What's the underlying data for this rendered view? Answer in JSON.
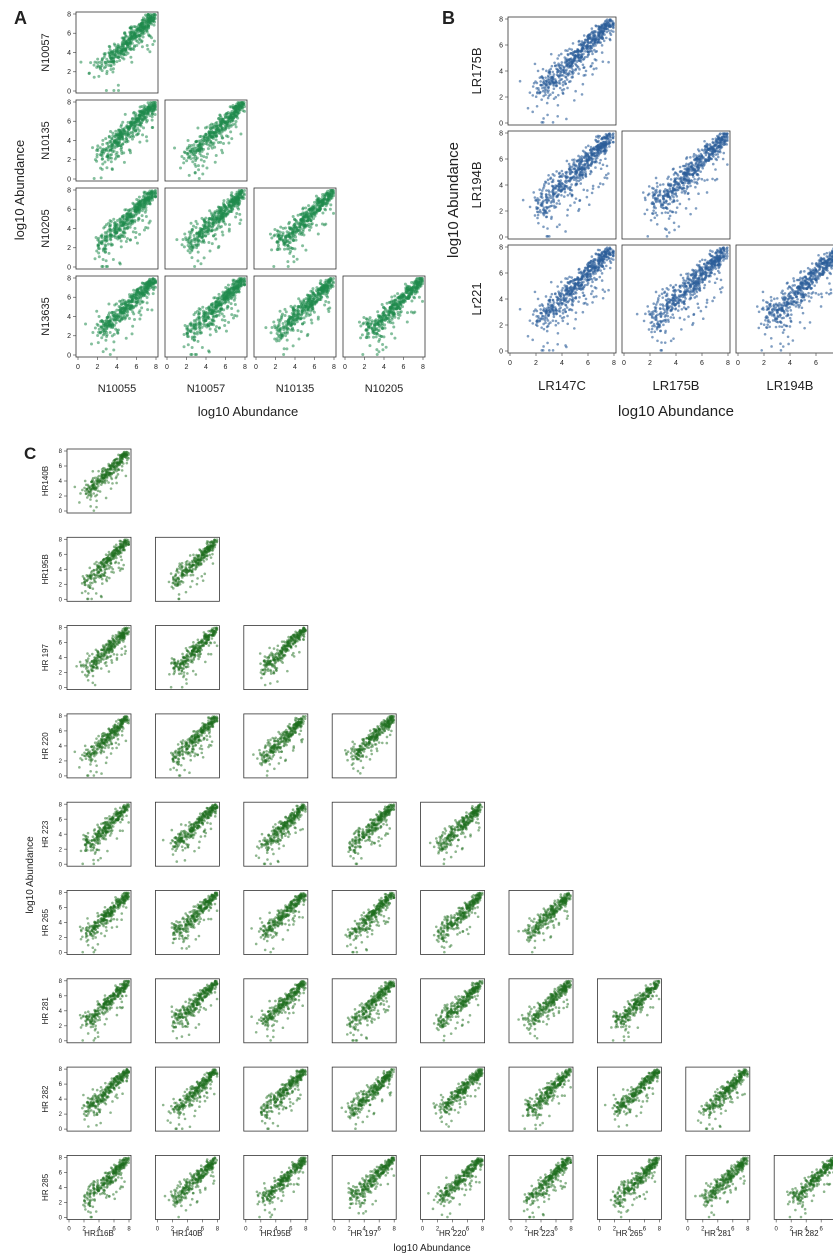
{
  "panels": {
    "A": {
      "letter": "A",
      "rows": [
        "N10057",
        "N10135",
        "N10205",
        "N13635"
      ],
      "cols": [
        "N10055",
        "N10057",
        "N10135",
        "N10205"
      ],
      "xlabel": "log10 Abundance",
      "ylabel": "log10 Abundance"
    },
    "B": {
      "letter": "B",
      "rows": [
        "LR175B",
        "LR194B",
        "Lr221"
      ],
      "cols": [
        "LR147C",
        "LR175B",
        "LR194B"
      ],
      "xlabel": "log10 Abundance",
      "ylabel": "log10 Abundance"
    },
    "C": {
      "letter": "C",
      "rows": [
        "HR140B",
        "HR195B",
        "HR 197",
        "HR 220",
        "HR 223",
        "HR 265",
        "HR 281",
        "HR 282",
        "HR 285"
      ],
      "cols": [
        "HR116B",
        "HR140B",
        "HR195B",
        "HR 197",
        "HR 220",
        "HR 223",
        "HR 265",
        "HR 281",
        "HR 282"
      ],
      "xlabel": "log10 Abundance",
      "ylabel": "log10 Abundance"
    }
  },
  "colors": {
    "A": "#1f8a4c",
    "B": "#2c5d99",
    "C": "#1e6e1e"
  },
  "chart_data": [
    {
      "type": "scatter",
      "panel": "A",
      "layout": "lower-triangular scatter matrix",
      "x_categories": [
        "N10055",
        "N10057",
        "N10135",
        "N10205"
      ],
      "y_categories": [
        "N10057",
        "N10135",
        "N10205",
        "N13635"
      ],
      "xlabel": "log10 Abundance",
      "ylabel": "log10 Abundance",
      "xlim": [
        0,
        8
      ],
      "ylim": [
        0,
        8
      ],
      "xticks": [
        0,
        2,
        4,
        6,
        8
      ],
      "yticks": [
        0,
        2,
        4,
        6,
        8
      ],
      "trend": {
        "x": [
          2,
          8
        ],
        "y": [
          2,
          8
        ]
      }
    },
    {
      "type": "scatter",
      "panel": "B",
      "layout": "lower-triangular scatter matrix",
      "x_categories": [
        "LR147C",
        "LR175B",
        "LR194B"
      ],
      "y_categories": [
        "LR175B",
        "LR194B",
        "Lr221"
      ],
      "xlabel": "log10 Abundance",
      "ylabel": "log10 Abundance",
      "xlim": [
        0,
        8
      ],
      "ylim": [
        0,
        8
      ],
      "xticks": [
        0,
        2,
        4,
        6,
        8
      ],
      "yticks": [
        0,
        2,
        4,
        6,
        8
      ],
      "trend": {
        "x": [
          2,
          8
        ],
        "y": [
          2,
          8
        ]
      }
    },
    {
      "type": "scatter",
      "panel": "C",
      "layout": "lower-triangular scatter matrix",
      "x_categories": [
        "HR116B",
        "HR140B",
        "HR195B",
        "HR 197",
        "HR 220",
        "HR 223",
        "HR 265",
        "HR 281",
        "HR 282"
      ],
      "y_categories": [
        "HR140B",
        "HR195B",
        "HR 197",
        "HR 220",
        "HR 223",
        "HR 265",
        "HR 281",
        "HR 282",
        "HR 285"
      ],
      "xlabel": "log10 Abundance",
      "ylabel": "log10 Abundance",
      "xlim": [
        0,
        8
      ],
      "ylim": [
        0,
        8
      ],
      "xticks": [
        0,
        2,
        4,
        6,
        8
      ],
      "yticks": [
        0,
        2,
        4,
        6,
        8
      ],
      "trend": {
        "x": [
          2,
          8
        ],
        "y": [
          2,
          8
        ]
      }
    }
  ]
}
